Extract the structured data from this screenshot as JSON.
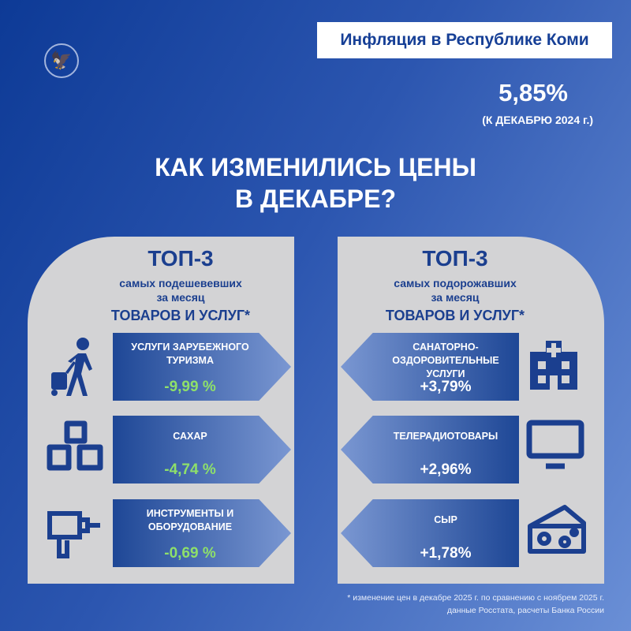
{
  "header": {
    "title": "Инфляция в Республике Коми",
    "rate": "5,85%",
    "rate_note": "(К ДЕКАБРЮ 2024 г.)"
  },
  "heading": {
    "line1": "КАК ИЗМЕНИЛИСЬ ЦЕНЫ",
    "line2": "В ДЕКАБРЕ?"
  },
  "colors": {
    "accent_blue": "#1b3f8f",
    "negative_green": "#8ee06a",
    "panel": "#d3d3d5"
  },
  "left": {
    "title": "ТОП-3",
    "sub1": "самых подешевевших",
    "sub2": "за месяц",
    "sub3": "ТОВАРОВ И УСЛУГ*",
    "items": [
      {
        "name": "УСЛУГИ ЗАРУБЕЖНОГО ТУРИЗМА",
        "value": "-9,99 %",
        "icon": "traveler-icon"
      },
      {
        "name": "САХАР",
        "value": "-4,74 %",
        "icon": "sugar-cubes-icon"
      },
      {
        "name": "ИНСТРУМЕНТЫ И ОБОРУДОВАНИЕ",
        "value": "-0,69 %",
        "icon": "drill-icon"
      }
    ]
  },
  "right": {
    "title": "ТОП-3",
    "sub1": "самых подорожавших",
    "sub2": "за месяц",
    "sub3": "ТОВАРОВ И УСЛУГ*",
    "items": [
      {
        "name": "САНАТОРНО-ОЗДОРОВИТЕЛЬНЫЕ УСЛУГИ",
        "value": "+3,79%",
        "icon": "hospital-icon"
      },
      {
        "name": "ТЕЛЕРАДИОТОВАРЫ",
        "value": "+2,96%",
        "icon": "tv-icon"
      },
      {
        "name": "СЫР",
        "value": "+1,78%",
        "icon": "cheese-icon"
      }
    ]
  },
  "footnote": {
    "line1": "* изменение цен в декабре 2025 г. по сравнению с ноябрем 2025 г.",
    "line2": "данные Росстата, расчеты Банка России"
  }
}
